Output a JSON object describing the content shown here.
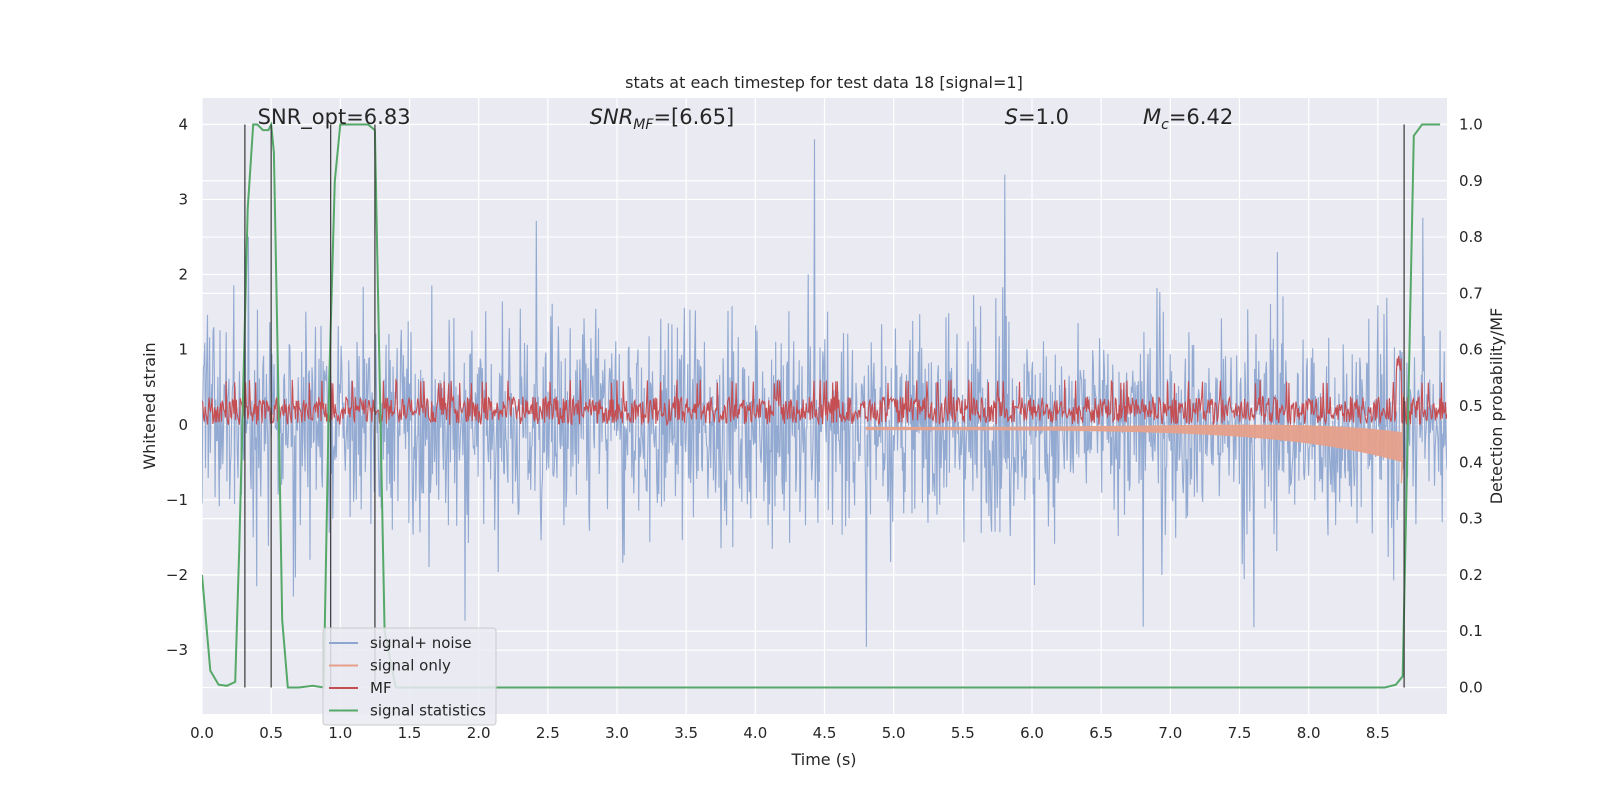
{
  "chart_data": {
    "type": "line",
    "title": "stats at each timestep for test data 18 [signal=1]",
    "xlabel": "Time (s)",
    "ylabel": "Whitened strain",
    "ylabel_right": "Detection probability/MF",
    "xlim": [
      0.0,
      9.0
    ],
    "ylim": [
      -3.85,
      4.35
    ],
    "ylim_right": [
      -0.047,
      1.047
    ],
    "x_ticks": [
      0.0,
      0.5,
      1.0,
      1.5,
      2.0,
      2.5,
      3.0,
      3.5,
      4.0,
      4.5,
      5.0,
      5.5,
      6.0,
      6.5,
      7.0,
      7.5,
      8.0,
      8.5
    ],
    "x_tick_labels": [
      "0.0",
      "0.5",
      "1.0",
      "1.5",
      "2.0",
      "2.5",
      "3.0",
      "3.5",
      "4.0",
      "4.5",
      "5.0",
      "5.5",
      "6.0",
      "6.5",
      "7.0",
      "7.5",
      "8.0",
      "8.5"
    ],
    "y_ticks": [
      -3,
      -2,
      -1,
      0,
      1,
      2,
      3,
      4
    ],
    "y_tick_labels": [
      "−3",
      "−2",
      "−1",
      "0",
      "1",
      "2",
      "3",
      "4"
    ],
    "y_ticks_right": [
      0.0,
      0.1,
      0.2,
      0.3,
      0.4,
      0.5,
      0.6,
      0.7,
      0.8,
      0.9,
      1.0
    ],
    "y_tick_labels_right": [
      "0.0",
      "0.1",
      "0.2",
      "0.3",
      "0.4",
      "0.5",
      "0.6",
      "0.7",
      "0.8",
      "0.9",
      "1.0"
    ],
    "grid": true,
    "legend_position": "lower-left",
    "annotations": [
      {
        "text": "SNR_opt=6.83",
        "italic": false,
        "at_x": 0.2
      },
      {
        "text": "SNR",
        "sub": "MF",
        "rest": "=[6.65]",
        "italic": true,
        "at_x": 2.6
      },
      {
        "text": "S",
        "sub": "",
        "rest": "=1.0",
        "italic": true,
        "at_x": 5.6
      },
      {
        "text": "M",
        "sub": "c",
        "rest": "=6.42",
        "italic": true,
        "at_x": 6.6
      }
    ],
    "vertical_lines_x": [
      0.31,
      0.5,
      0.93,
      1.25,
      8.69
    ],
    "series": [
      {
        "name": "signal+ noise",
        "color": "#8da5cf",
        "kind": "noise",
        "amplitude_typical": 1.6,
        "peak_range": [
          -3.55,
          4.0
        ]
      },
      {
        "name": "signal only",
        "color": "#e6a08a",
        "kind": "chirp",
        "x_end": 8.68,
        "min_at_end": -0.78,
        "max_at_end": 0.42
      },
      {
        "name": "MF",
        "color": "#c44e52",
        "kind": "mf_band",
        "band": [
          0.0,
          0.55
        ],
        "spike_x": 8.65,
        "spike_y": 1.0
      },
      {
        "name": "signal statistics",
        "color": "#55a868",
        "kind": "probability",
        "x": [
          0.0,
          0.06,
          0.12,
          0.18,
          0.24,
          0.27,
          0.3,
          0.33,
          0.37,
          0.4,
          0.44,
          0.48,
          0.5,
          0.52,
          0.55,
          0.58,
          0.62,
          0.7,
          0.8,
          0.88,
          0.92,
          0.96,
          1.0,
          1.1,
          1.2,
          1.25,
          1.28,
          1.32,
          1.4,
          1.6,
          8.55,
          8.63,
          8.68,
          8.72,
          8.76,
          8.82,
          8.95
        ],
        "y": [
          0.2,
          0.03,
          0.005,
          0.003,
          0.01,
          0.25,
          0.55,
          0.85,
          1.0,
          1.0,
          0.99,
          0.99,
          1.0,
          0.95,
          0.55,
          0.12,
          0.0,
          0.0,
          0.003,
          0.0,
          0.55,
          0.9,
          1.0,
          1.0,
          1.0,
          0.99,
          0.6,
          0.1,
          0.0,
          0.0,
          0.0,
          0.005,
          0.02,
          0.5,
          0.98,
          1.0,
          1.0
        ]
      }
    ]
  }
}
